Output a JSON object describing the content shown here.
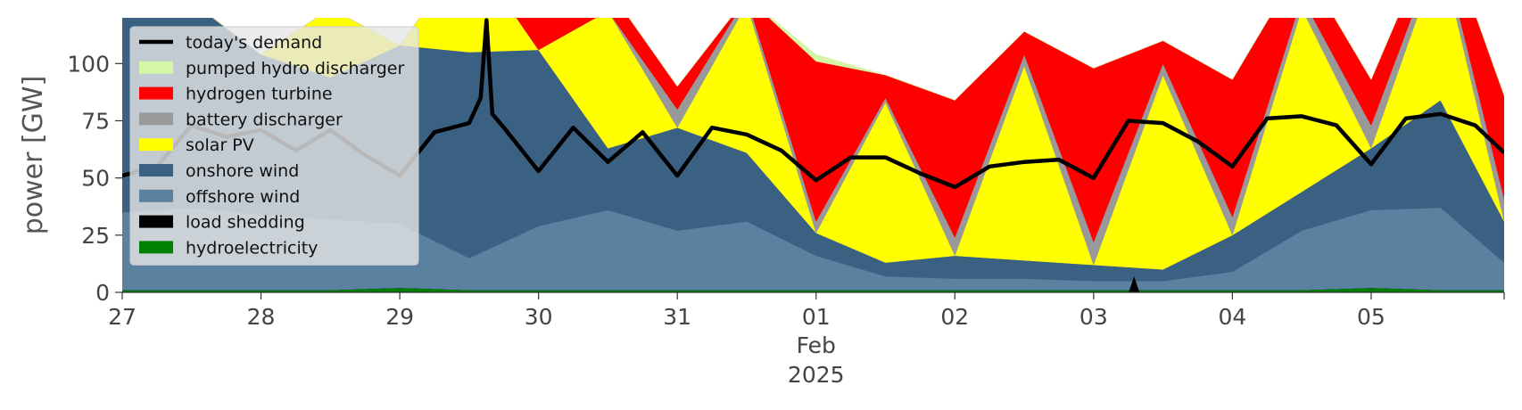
{
  "chart_data": {
    "type": "area",
    "title": "",
    "xlabel": "",
    "ylabel": "power [GW]",
    "x_range": [
      "2025-01-27",
      "2025-02-05 23:00"
    ],
    "ylim": [
      0,
      120
    ],
    "y_ticks": [
      0,
      25,
      50,
      75,
      100
    ],
    "x_ticks": [
      {
        "date": "2025-01-27",
        "label": "27"
      },
      {
        "date": "2025-01-28",
        "label": "28"
      },
      {
        "date": "2025-01-29",
        "label": "29"
      },
      {
        "date": "2025-01-30",
        "label": "30"
      },
      {
        "date": "2025-01-31",
        "label": "31"
      },
      {
        "date": "2025-02-01",
        "label": "01"
      },
      {
        "date": "2025-02-02",
        "label": "02"
      },
      {
        "date": "2025-02-03",
        "label": "03"
      },
      {
        "date": "2025-02-04",
        "label": "04"
      },
      {
        "date": "2025-02-05",
        "label": "05"
      }
    ],
    "x_secondary_label": [
      "Feb",
      "2025"
    ],
    "grid": false,
    "legend_placement": "top-left",
    "x": [
      "2025-01-27 00:00",
      "2025-01-27 12:00",
      "2025-01-28 00:00",
      "2025-01-28 12:00",
      "2025-01-29 00:00",
      "2025-01-29 12:00",
      "2025-01-30 00:00",
      "2025-01-30 12:00",
      "2025-01-31 00:00",
      "2025-01-31 12:00",
      "2025-02-01 00:00",
      "2025-02-01 12:00",
      "2025-02-02 00:00",
      "2025-02-02 12:00",
      "2025-02-03 00:00",
      "2025-02-03 12:00",
      "2025-02-04 00:00",
      "2025-02-04 12:00",
      "2025-02-05 00:00",
      "2025-02-05 12:00",
      "2025-02-05 23:00"
    ],
    "series": [
      {
        "name": "hydroelectricity",
        "color": "#008000",
        "values": [
          1,
          1,
          1,
          1,
          2,
          1,
          1,
          1,
          1,
          1,
          1,
          1,
          1,
          1,
          1,
          1,
          1,
          1,
          2,
          1,
          1
        ]
      },
      {
        "name": "load shedding",
        "color": "#000000",
        "values": [
          0,
          0,
          0,
          0,
          0,
          0,
          0,
          0,
          0,
          0,
          0,
          0,
          0,
          0,
          0,
          0,
          0,
          0,
          0,
          0,
          0
        ]
      },
      {
        "name": "offshore wind",
        "color": "#5b81a1",
        "values": [
          34,
          36,
          33,
          31,
          28,
          14,
          28,
          35,
          26,
          30,
          15,
          6,
          5,
          5,
          4,
          4,
          8,
          26,
          34,
          36,
          12
        ]
      },
      {
        "name": "onshore wind",
        "color": "#3a6082",
        "values": [
          86,
          90,
          70,
          62,
          78,
          90,
          77,
          27,
          45,
          30,
          10,
          6,
          10,
          8,
          7,
          5,
          16,
          17,
          27,
          47,
          18
        ]
      },
      {
        "name": "solar PV",
        "color": "#ffff00",
        "values": [
          0,
          0,
          0,
          30,
          0,
          45,
          0,
          60,
          0,
          65,
          0,
          70,
          0,
          85,
          0,
          85,
          0,
          80,
          0,
          65,
          0
        ]
      },
      {
        "name": "battery discharger",
        "color": "#999999",
        "values": [
          0,
          0,
          0,
          0,
          0,
          0,
          0,
          0,
          8,
          3,
          5,
          2,
          8,
          5,
          10,
          5,
          8,
          5,
          10,
          5,
          10
        ]
      },
      {
        "name": "hydrogen turbine",
        "color": "#ff0000",
        "values": [
          0,
          0,
          0,
          0,
          0,
          0,
          15,
          10,
          10,
          0,
          70,
          10,
          60,
          10,
          76,
          10,
          60,
          15,
          20,
          10,
          45
        ]
      },
      {
        "name": "pumped hydro discharger",
        "color": "#d5f5a7",
        "values": [
          0,
          0,
          0,
          0,
          0,
          0,
          0,
          0,
          0,
          0,
          3,
          0,
          0,
          0,
          0,
          0,
          0,
          0,
          0,
          0,
          0
        ]
      }
    ],
    "demand": {
      "name": "today's demand",
      "color": "#000000",
      "x": [
        "2025-01-27 00:00",
        "2025-01-27 06:00",
        "2025-01-27 12:00",
        "2025-01-27 18:00",
        "2025-01-28 00:00",
        "2025-01-28 06:00",
        "2025-01-28 12:00",
        "2025-01-28 18:00",
        "2025-01-29 00:00",
        "2025-01-29 06:00",
        "2025-01-29 12:00",
        "2025-01-29 14:00",
        "2025-01-29 15:00",
        "2025-01-29 16:00",
        "2025-01-29 18:00",
        "2025-01-30 00:00",
        "2025-01-30 06:00",
        "2025-01-30 12:00",
        "2025-01-30 18:00",
        "2025-01-31 00:00",
        "2025-01-31 06:00",
        "2025-01-31 12:00",
        "2025-01-31 18:00",
        "2025-02-01 00:00",
        "2025-02-01 06:00",
        "2025-02-01 12:00",
        "2025-02-01 18:00",
        "2025-02-02 00:00",
        "2025-02-02 06:00",
        "2025-02-02 12:00",
        "2025-02-02 18:00",
        "2025-02-03 00:00",
        "2025-02-03 06:00",
        "2025-02-03 12:00",
        "2025-02-03 18:00",
        "2025-02-04 00:00",
        "2025-02-04 06:00",
        "2025-02-04 12:00",
        "2025-02-04 18:00",
        "2025-02-05 00:00",
        "2025-02-05 06:00",
        "2025-02-05 12:00",
        "2025-02-05 18:00",
        "2025-02-05 23:00"
      ],
      "values": [
        51,
        55,
        73,
        68,
        71,
        62,
        71,
        60,
        51,
        70,
        74,
        85,
        119,
        78,
        72,
        53,
        72,
        57,
        70,
        51,
        72,
        69,
        62,
        49,
        59,
        59,
        52,
        46,
        55,
        57,
        58,
        50,
        75,
        74,
        66,
        55,
        76,
        77,
        73,
        56,
        76,
        78,
        73,
        61
      ]
    },
    "load_shedding_event": {
      "x": "2025-02-03 07:00",
      "value": 7
    }
  }
}
